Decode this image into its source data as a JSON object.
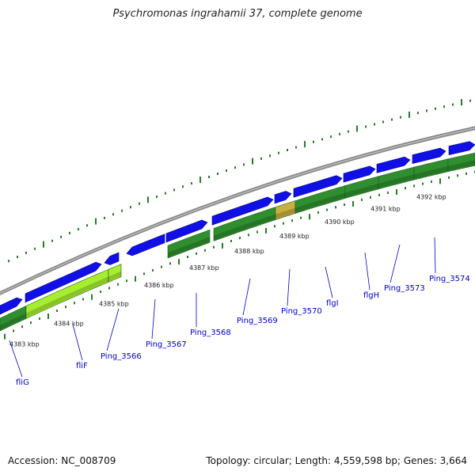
{
  "header": {
    "title": "Psychromonas ingrahamii 37, complete genome"
  },
  "footer": {
    "accession": "Accession: NC_008709",
    "summary": "Topology: circular; Length: 4,559,598 bp; Genes: 3,664"
  },
  "colors": {
    "backbone": "#8a8a8a",
    "gene_blue": "#1010e6",
    "cds_green": "#2f8f2f",
    "cds_light_green": "#a8ee30",
    "ticks": "#2a7a2a",
    "label_blue": "#0000c0"
  },
  "kbp_labels": [
    "4383 kbp",
    "4384 kbp",
    "4385 kbp",
    "4386 kbp",
    "4387 kbp",
    "4388 kbp",
    "4389 kbp",
    "4390 kbp",
    "4391 kbp",
    "4392 kbp"
  ],
  "gene_labels": [
    "fliG",
    "fliF",
    "Ping_3566",
    "Ping_3567",
    "Ping_3568",
    "Ping_3569",
    "Ping_3570",
    "flgI",
    "flgH",
    "Ping_3573",
    "Ping_3574"
  ]
}
